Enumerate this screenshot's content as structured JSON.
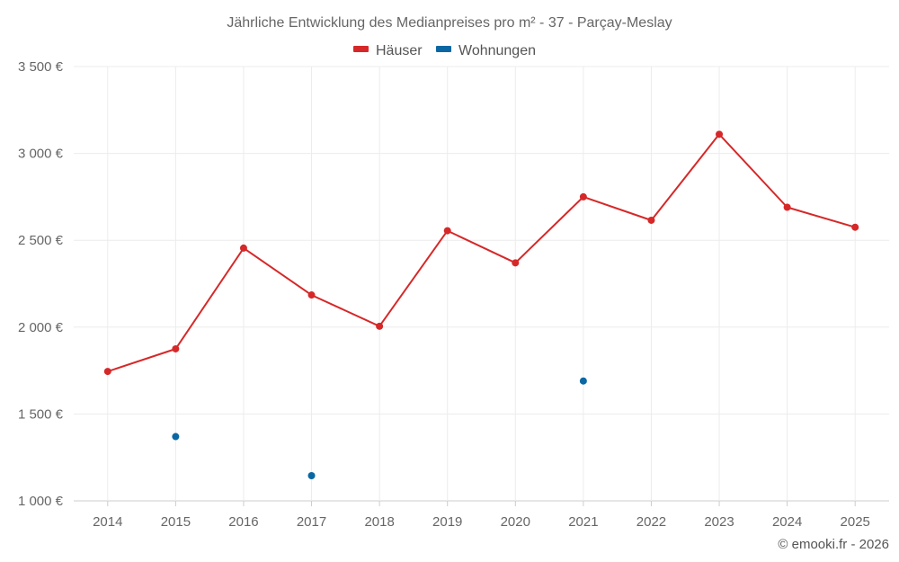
{
  "chart_data": {
    "type": "line",
    "title": "Jährliche Entwicklung des Medianpreises pro m² - 37 - Parçay-Meslay",
    "categories": [
      "2014",
      "2015",
      "2016",
      "2017",
      "2018",
      "2019",
      "2020",
      "2021",
      "2022",
      "2023",
      "2024",
      "2025"
    ],
    "series": [
      {
        "name": "Häuser",
        "color": "#d62828",
        "style": "line-with-markers",
        "values": [
          1745,
          1875,
          2455,
          2185,
          2005,
          2555,
          2370,
          2750,
          2615,
          3110,
          2690,
          2575
        ]
      },
      {
        "name": "Wohnungen",
        "color": "#0a67a3",
        "style": "markers-only",
        "values": [
          null,
          1370,
          null,
          1145,
          null,
          null,
          null,
          1690,
          null,
          null,
          null,
          null
        ]
      }
    ],
    "y_ticks": [
      "1 000 €",
      "1 500 €",
      "2 000 €",
      "2 500 €",
      "3 000 €",
      "3 500 €"
    ],
    "y_tick_values": [
      1000,
      1500,
      2000,
      2500,
      3000,
      3500
    ],
    "ylim": [
      1000,
      3500
    ],
    "xlabel": "",
    "ylabel": "",
    "grid": true,
    "legend_position": "top-center",
    "credit": "© emooki.fr - 2026"
  }
}
